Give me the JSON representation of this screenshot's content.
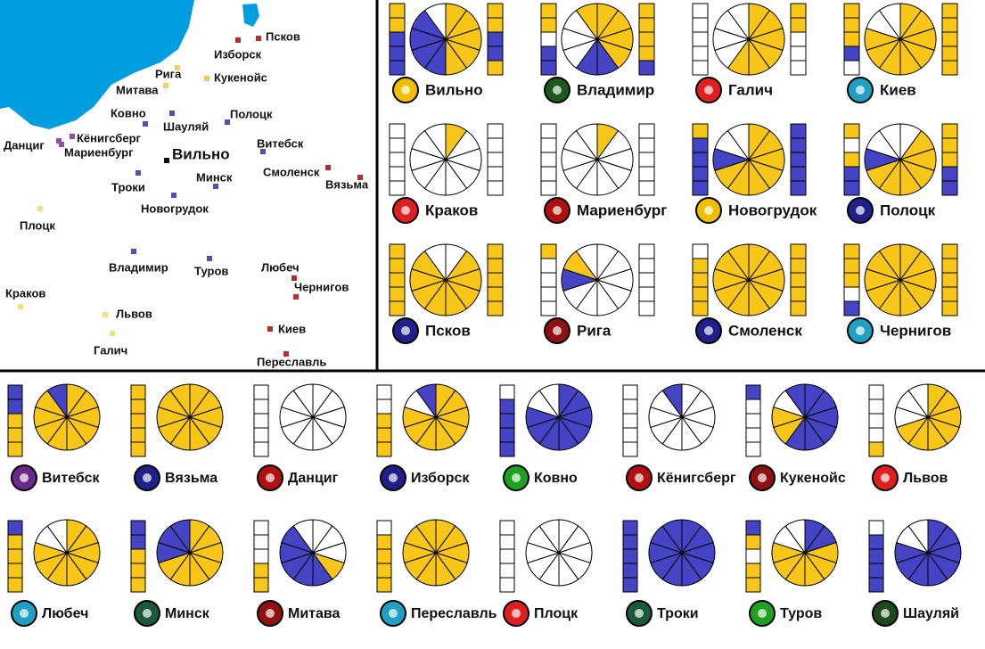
{
  "palette": {
    "y": "#f8c619",
    "b": "#4444c4",
    "w": "#ffffff"
  },
  "map": {
    "cities": [
      {
        "label": "Псков",
        "marker": "#b03030"
      },
      {
        "label": "Изборск",
        "marker": "#b03030"
      },
      {
        "label": "Рига",
        "marker": "#f0d060"
      },
      {
        "label": "Кукенойс",
        "marker": "#f0d060"
      },
      {
        "label": "Митава",
        "marker": "#f0d060"
      },
      {
        "label": "Ковно",
        "marker": "#5050b0"
      },
      {
        "label": "Полоцк",
        "marker": "#5050b0"
      },
      {
        "label": "Шауляй",
        "marker": "#5050b0"
      },
      {
        "label": "Данциг",
        "marker": "#9050a0"
      },
      {
        "label": "Кёнигсберг",
        "marker": "#9050a0"
      },
      {
        "label": "Мариенбург",
        "marker": "#9050a0"
      },
      {
        "label": "Вильно",
        "marker": "#111111"
      },
      {
        "label": "Витебск",
        "marker": "#5050b0"
      },
      {
        "label": "Смоленск",
        "marker": "#b03030"
      },
      {
        "label": "Вязьма",
        "marker": "#b03030"
      },
      {
        "label": "Минск",
        "marker": "#5050b0"
      },
      {
        "label": "Троки",
        "marker": "#5050b0"
      },
      {
        "label": "Новогрудок",
        "marker": "#5050b0"
      },
      {
        "label": "Плоцк",
        "marker": "#f0e080"
      },
      {
        "label": "Владимир",
        "marker": "#5050b0"
      },
      {
        "label": "Туров",
        "marker": "#5050b0"
      },
      {
        "label": "Любеч",
        "marker": "#b03030"
      },
      {
        "label": "Краков",
        "marker": "#f0e080"
      },
      {
        "label": "Чернигов",
        "marker": "#b03030"
      },
      {
        "label": "Львов",
        "marker": "#f0e080"
      },
      {
        "label": "Киев",
        "marker": "#b03030"
      },
      {
        "label": "Галич",
        "marker": "#f0e080"
      },
      {
        "label": "Переславль",
        "marker": "#b03030"
      }
    ]
  },
  "top_cards": [
    {
      "name": "Вильно",
      "emblem": "#f0c000",
      "left": [
        "y",
        "y",
        "b",
        "b",
        "b"
      ],
      "pie": [
        "y",
        "y",
        "y",
        "y",
        "y",
        "b",
        "b",
        "b",
        "b",
        "w"
      ],
      "right": [
        "y",
        "y",
        "b",
        "b",
        "y"
      ]
    },
    {
      "name": "Владимир",
      "emblem": "#1a5a1a",
      "left": [
        "y",
        "y",
        "w",
        "b",
        "b"
      ],
      "pie": [
        "y",
        "y",
        "y",
        "y",
        "b",
        "b",
        "w",
        "w",
        "w",
        "y"
      ],
      "right": [
        "y",
        "y",
        "y",
        "y",
        "b"
      ]
    },
    {
      "name": "Галич",
      "emblem": "#e02020",
      "left": [
        "w",
        "w",
        "w",
        "w",
        "w"
      ],
      "pie": [
        "y",
        "y",
        "y",
        "y",
        "y",
        "y",
        "w",
        "w",
        "w",
        "w"
      ],
      "right": [
        "y",
        "y",
        "w",
        "w",
        "w"
      ]
    },
    {
      "name": "Киев",
      "emblem": "#20a0c0",
      "left": [
        "y",
        "y",
        "y",
        "b",
        "w"
      ],
      "pie": [
        "y",
        "y",
        "y",
        "y",
        "y",
        "y",
        "y",
        "y",
        "w",
        "w"
      ],
      "right": [
        "y",
        "y",
        "y",
        "y",
        "y"
      ]
    },
    {
      "name": "Краков",
      "emblem": "#e02020",
      "left": [
        "w",
        "w",
        "w",
        "w",
        "w"
      ],
      "pie": [
        "y",
        "w",
        "w",
        "w",
        "w",
        "w",
        "w",
        "w",
        "w",
        "w"
      ],
      "right": [
        "w",
        "w",
        "w",
        "w",
        "w"
      ]
    },
    {
      "name": "Мариенбург",
      "emblem": "#b01010",
      "left": [
        "w",
        "w",
        "w",
        "w",
        "w"
      ],
      "pie": [
        "y",
        "w",
        "w",
        "w",
        "w",
        "w",
        "w",
        "w",
        "w",
        "w"
      ],
      "right": [
        "w",
        "w",
        "w",
        "w",
        "w"
      ]
    },
    {
      "name": "Новогрудок",
      "emblem": "#f0c000",
      "left": [
        "y",
        "b",
        "b",
        "b",
        "b"
      ],
      "pie": [
        "y",
        "y",
        "y",
        "y",
        "y",
        "y",
        "y",
        "b",
        "w",
        "w"
      ],
      "right": [
        "b",
        "b",
        "b",
        "b",
        "b"
      ]
    },
    {
      "name": "Полоцк",
      "emblem": "#20208a",
      "left": [
        "y",
        "w",
        "y",
        "b",
        "b"
      ],
      "pie": [
        "w",
        "y",
        "y",
        "y",
        "y",
        "y",
        "y",
        "b",
        "w",
        "w"
      ],
      "right": [
        "y",
        "y",
        "y",
        "b",
        "b"
      ]
    },
    {
      "name": "Псков",
      "emblem": "#20208a",
      "left": [
        "y",
        "y",
        "y",
        "y",
        "y"
      ],
      "pie": [
        "w",
        "y",
        "y",
        "y",
        "y",
        "y",
        "y",
        "y",
        "y",
        "w"
      ],
      "right": [
        "y",
        "y",
        "y",
        "y",
        "y"
      ]
    },
    {
      "name": "Рига",
      "emblem": "#901010",
      "left": [
        "y",
        "w",
        "w",
        "w",
        "w"
      ],
      "pie": [
        "w",
        "w",
        "w",
        "w",
        "w",
        "w",
        "w",
        "b",
        "y",
        "w"
      ],
      "right": [
        "w",
        "w",
        "w",
        "w",
        "w"
      ]
    },
    {
      "name": "Смоленск",
      "emblem": "#20208a",
      "left": [
        "w",
        "y",
        "y",
        "y",
        "y"
      ],
      "pie": [
        "y",
        "y",
        "y",
        "y",
        "y",
        "y",
        "y",
        "y",
        "y",
        "y"
      ],
      "right": [
        "y",
        "y",
        "y",
        "y",
        "y"
      ]
    },
    {
      "name": "Чернигов",
      "emblem": "#20a0c0",
      "left": [
        "y",
        "y",
        "y",
        "w",
        "b"
      ],
      "pie": [
        "y",
        "y",
        "y",
        "y",
        "y",
        "y",
        "y",
        "y",
        "y",
        "y"
      ],
      "right": [
        "y",
        "y",
        "y",
        "y",
        "y"
      ]
    }
  ],
  "bottom_cards": [
    {
      "name": "Витебск",
      "emblem": "#6a2a8a",
      "left": [
        "b",
        "b",
        "y",
        "y",
        "y"
      ],
      "pie": [
        "y",
        "y",
        "y",
        "y",
        "y",
        "y",
        "y",
        "y",
        "y",
        "b"
      ]
    },
    {
      "name": "Вязьма",
      "emblem": "#20208a",
      "left": [
        "y",
        "y",
        "y",
        "y",
        "y"
      ],
      "pie": [
        "y",
        "y",
        "y",
        "y",
        "y",
        "y",
        "y",
        "y",
        "y",
        "y"
      ]
    },
    {
      "name": "Данциг",
      "emblem": "#b01010",
      "left": [
        "w",
        "w",
        "w",
        "w",
        "w"
      ],
      "pie": [
        "w",
        "w",
        "w",
        "w",
        "w",
        "w",
        "w",
        "w",
        "w",
        "w"
      ]
    },
    {
      "name": "Изборск",
      "emblem": "#20208a",
      "left": [
        "w",
        "w",
        "y",
        "y",
        "y"
      ],
      "pie": [
        "y",
        "y",
        "y",
        "y",
        "y",
        "y",
        "y",
        "y",
        "w",
        "b"
      ]
    },
    {
      "name": "Ковно",
      "emblem": "#20a020",
      "left": [
        "w",
        "b",
        "b",
        "b",
        "b"
      ],
      "pie": [
        "b",
        "b",
        "b",
        "b",
        "b",
        "b",
        "b",
        "b",
        "w",
        "w"
      ]
    },
    {
      "name": "Кёнигсберг",
      "emblem": "#b01010",
      "left": [
        "w",
        "w",
        "w",
        "w",
        "w"
      ],
      "pie": [
        "w",
        "w",
        "w",
        "w",
        "w",
        "w",
        "w",
        "w",
        "w",
        "b"
      ]
    },
    {
      "name": "Кукенойс",
      "emblem": "#901010",
      "left": [
        "b",
        "w",
        "w",
        "w",
        "w"
      ],
      "pie": [
        "b",
        "b",
        "b",
        "b",
        "b",
        "b",
        "y",
        "y",
        "w",
        "b"
      ]
    },
    {
      "name": "Львов",
      "emblem": "#e02020",
      "left": [
        "w",
        "w",
        "w",
        "w",
        "y"
      ],
      "pie": [
        "y",
        "y",
        "y",
        "y",
        "y",
        "y",
        "y",
        "w",
        "w",
        "w"
      ]
    },
    {
      "name": "Любеч",
      "emblem": "#20a0c0",
      "left": [
        "b",
        "y",
        "y",
        "y",
        "y"
      ],
      "pie": [
        "y",
        "y",
        "y",
        "y",
        "y",
        "y",
        "y",
        "y",
        "w",
        "w"
      ]
    },
    {
      "name": "Минск",
      "emblem": "#1a5a3a",
      "left": [
        "b",
        "b",
        "y",
        "y",
        "y"
      ],
      "pie": [
        "y",
        "y",
        "y",
        "y",
        "y",
        "y",
        "y",
        "b",
        "b",
        "b"
      ]
    },
    {
      "name": "Митава",
      "emblem": "#901010",
      "left": [
        "w",
        "w",
        "w",
        "y",
        "y"
      ],
      "pie": [
        "w",
        "w",
        "w",
        "y",
        "b",
        "b",
        "b",
        "b",
        "b",
        "w"
      ]
    },
    {
      "name": "Переславль",
      "emblem": "#20a0c0",
      "left": [
        "w",
        "y",
        "y",
        "y",
        "y"
      ],
      "pie": [
        "y",
        "y",
        "y",
        "y",
        "y",
        "y",
        "y",
        "y",
        "y",
        "y"
      ]
    },
    {
      "name": "Плоцк",
      "emblem": "#e02020",
      "left": [
        "w",
        "w",
        "w",
        "w",
        "w"
      ],
      "pie": [
        "w",
        "w",
        "w",
        "w",
        "w",
        "w",
        "w",
        "w",
        "w",
        "w"
      ]
    },
    {
      "name": "Троки",
      "emblem": "#1a5a3a",
      "left": [
        "b",
        "b",
        "b",
        "b",
        "b"
      ],
      "pie": [
        "b",
        "b",
        "b",
        "b",
        "b",
        "b",
        "b",
        "b",
        "b",
        "b"
      ]
    },
    {
      "name": "Туров",
      "emblem": "#20a020",
      "left": [
        "b",
        "y",
        "w",
        "y",
        "y"
      ],
      "pie": [
        "b",
        "b",
        "y",
        "y",
        "y",
        "y",
        "y",
        "y",
        "w",
        "w"
      ]
    },
    {
      "name": "Шауляй",
      "emblem": "#1a4a1a",
      "left": [
        "w",
        "b",
        "b",
        "b",
        "b"
      ],
      "pie": [
        "b",
        "b",
        "b",
        "b",
        "b",
        "b",
        "b",
        "b",
        "w",
        "w"
      ]
    }
  ]
}
